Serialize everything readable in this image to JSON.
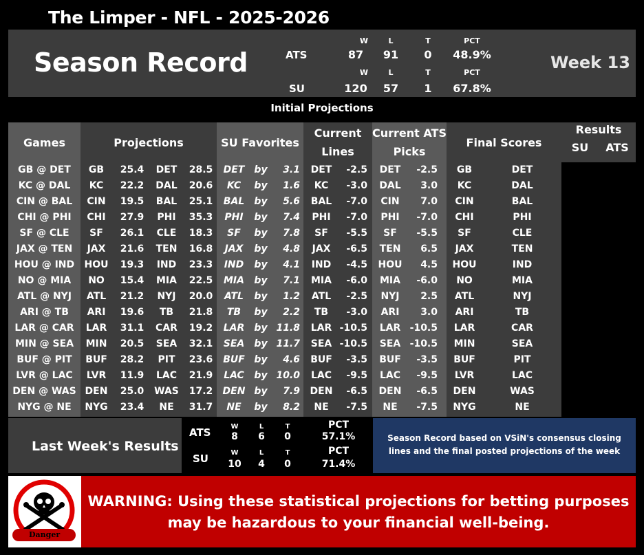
{
  "header": {
    "title": "The Limper - NFL - 2025-2026",
    "section_title": "Season Record",
    "week": "Week 13"
  },
  "season_record": {
    "ats": {
      "label": "ATS",
      "w": "87",
      "l": "91",
      "t": "0",
      "pct": "48.9%"
    },
    "su": {
      "label": "SU",
      "w": "120",
      "l": "57",
      "t": "1",
      "pct": "67.8%"
    },
    "col_headers": {
      "w": "W",
      "l": "L",
      "t": "T",
      "pct": "PCT"
    }
  },
  "banner": "Initial Projections",
  "table": {
    "headers": {
      "games": "Games",
      "projections": "Projections",
      "su_favorites": "SU Favorites",
      "current_lines_1": "Current",
      "current_lines_2": "Lines",
      "ats_picks_1": "Current ATS",
      "ats_picks_2": "Picks",
      "final_scores": "Final Scores",
      "results": "Results",
      "results_su": "SU",
      "results_ats": "ATS"
    },
    "rows": [
      {
        "game": "GB @ DET",
        "t1": "GB",
        "s1": "25.4",
        "t2": "DET",
        "s2": "28.5",
        "fav": "DET",
        "by": "by",
        "margin": "3.1",
        "line_team": "DET",
        "line": "-2.5",
        "pick_team": "DET",
        "pick": "-2.5",
        "f1": "GB",
        "f2": "DET"
      },
      {
        "game": "KC @ DAL",
        "t1": "KC",
        "s1": "22.2",
        "t2": "DAL",
        "s2": "20.6",
        "fav": "KC",
        "by": "by",
        "margin": "1.6",
        "line_team": "KC",
        "line": "-3.0",
        "pick_team": "DAL",
        "pick": "3.0",
        "f1": "KC",
        "f2": "DAL"
      },
      {
        "game": "CIN @ BAL",
        "t1": "CIN",
        "s1": "19.5",
        "t2": "BAL",
        "s2": "25.1",
        "fav": "BAL",
        "by": "by",
        "margin": "5.6",
        "line_team": "BAL",
        "line": "-7.0",
        "pick_team": "CIN",
        "pick": "7.0",
        "f1": "CIN",
        "f2": "BAL"
      },
      {
        "game": "CHI @ PHI",
        "t1": "CHI",
        "s1": "27.9",
        "t2": "PHI",
        "s2": "35.3",
        "fav": "PHI",
        "by": "by",
        "margin": "7.4",
        "line_team": "PHI",
        "line": "-7.0",
        "pick_team": "PHI",
        "pick": "-7.0",
        "f1": "CHI",
        "f2": "PHI"
      },
      {
        "game": "SF @ CLE",
        "t1": "SF",
        "s1": "26.1",
        "t2": "CLE",
        "s2": "18.3",
        "fav": "SF",
        "by": "by",
        "margin": "7.8",
        "line_team": "SF",
        "line": "-5.5",
        "pick_team": "SF",
        "pick": "-5.5",
        "f1": "SF",
        "f2": "CLE"
      },
      {
        "game": "JAX @ TEN",
        "t1": "JAX",
        "s1": "21.6",
        "t2": "TEN",
        "s2": "16.8",
        "fav": "JAX",
        "by": "by",
        "margin": "4.8",
        "line_team": "JAX",
        "line": "-6.5",
        "pick_team": "TEN",
        "pick": "6.5",
        "f1": "JAX",
        "f2": "TEN"
      },
      {
        "game": "HOU @ IND",
        "t1": "HOU",
        "s1": "19.3",
        "t2": "IND",
        "s2": "23.3",
        "fav": "IND",
        "by": "by",
        "margin": "4.1",
        "line_team": "IND",
        "line": "-4.5",
        "pick_team": "HOU",
        "pick": "4.5",
        "f1": "HOU",
        "f2": "IND"
      },
      {
        "game": "NO @ MIA",
        "t1": "NO",
        "s1": "15.4",
        "t2": "MIA",
        "s2": "22.5",
        "fav": "MIA",
        "by": "by",
        "margin": "7.1",
        "line_team": "MIA",
        "line": "-6.0",
        "pick_team": "MIA",
        "pick": "-6.0",
        "f1": "NO",
        "f2": "MIA"
      },
      {
        "game": "ATL @ NYJ",
        "t1": "ATL",
        "s1": "21.2",
        "t2": "NYJ",
        "s2": "20.0",
        "fav": "ATL",
        "by": "by",
        "margin": "1.2",
        "line_team": "ATL",
        "line": "-2.5",
        "pick_team": "NYJ",
        "pick": "2.5",
        "f1": "ATL",
        "f2": "NYJ"
      },
      {
        "game": "ARI @ TB",
        "t1": "ARI",
        "s1": "19.6",
        "t2": "TB",
        "s2": "21.8",
        "fav": "TB",
        "by": "by",
        "margin": "2.2",
        "line_team": "TB",
        "line": "-3.0",
        "pick_team": "ARI",
        "pick": "3.0",
        "f1": "ARI",
        "f2": "TB"
      },
      {
        "game": "LAR @ CAR",
        "t1": "LAR",
        "s1": "31.1",
        "t2": "CAR",
        "s2": "19.2",
        "fav": "LAR",
        "by": "by",
        "margin": "11.8",
        "line_team": "LAR",
        "line": "-10.5",
        "pick_team": "LAR",
        "pick": "-10.5",
        "f1": "LAR",
        "f2": "CAR"
      },
      {
        "game": "MIN @ SEA",
        "t1": "MIN",
        "s1": "20.5",
        "t2": "SEA",
        "s2": "32.1",
        "fav": "SEA",
        "by": "by",
        "margin": "11.7",
        "line_team": "SEA",
        "line": "-10.5",
        "pick_team": "SEA",
        "pick": "-10.5",
        "f1": "MIN",
        "f2": "SEA"
      },
      {
        "game": "BUF @ PIT",
        "t1": "BUF",
        "s1": "28.2",
        "t2": "PIT",
        "s2": "23.6",
        "fav": "BUF",
        "by": "by",
        "margin": "4.6",
        "line_team": "BUF",
        "line": "-3.5",
        "pick_team": "BUF",
        "pick": "-3.5",
        "f1": "BUF",
        "f2": "PIT"
      },
      {
        "game": "LVR @ LAC",
        "t1": "LVR",
        "s1": "11.9",
        "t2": "LAC",
        "s2": "21.9",
        "fav": "LAC",
        "by": "by",
        "margin": "10.0",
        "line_team": "LAC",
        "line": "-9.5",
        "pick_team": "LAC",
        "pick": "-9.5",
        "f1": "LVR",
        "f2": "LAC"
      },
      {
        "game": "DEN @ WAS",
        "t1": "DEN",
        "s1": "25.0",
        "t2": "WAS",
        "s2": "17.2",
        "fav": "DEN",
        "by": "by",
        "margin": "7.9",
        "line_team": "DEN",
        "line": "-6.5",
        "pick_team": "DEN",
        "pick": "-6.5",
        "f1": "DEN",
        "f2": "WAS"
      },
      {
        "game": "NYG @ NE",
        "t1": "NYG",
        "s1": "23.4",
        "t2": "NE",
        "s2": "31.7",
        "fav": "NE",
        "by": "by",
        "margin": "8.2",
        "line_team": "NE",
        "line": "-7.5",
        "pick_team": "NE",
        "pick": "-7.5",
        "f1": "NYG",
        "f2": "NE"
      }
    ]
  },
  "last_week": {
    "label": "Last Week's Results",
    "ats": {
      "label": "ATS",
      "w": "8",
      "l": "6",
      "t": "0",
      "pct": "57.1%"
    },
    "su": {
      "label": "SU",
      "w": "10",
      "l": "4",
      "t": "0",
      "pct": "71.4%"
    },
    "col_headers": {
      "w": "W",
      "l": "L",
      "t": "T",
      "pct": "PCT"
    }
  },
  "note": "Season Record based on VSiN's consensus closing lines and the final posted projections of the week",
  "warning": {
    "badge": "Danger",
    "text": "WARNING: Using these statistical projections for betting purposes may be hazardous to your financial well-being."
  },
  "colors": {
    "panel": "#3c3c3c",
    "panel_light": "#5a5a5a",
    "note_bg": "#1f3864",
    "warning_bg": "#c00000"
  }
}
